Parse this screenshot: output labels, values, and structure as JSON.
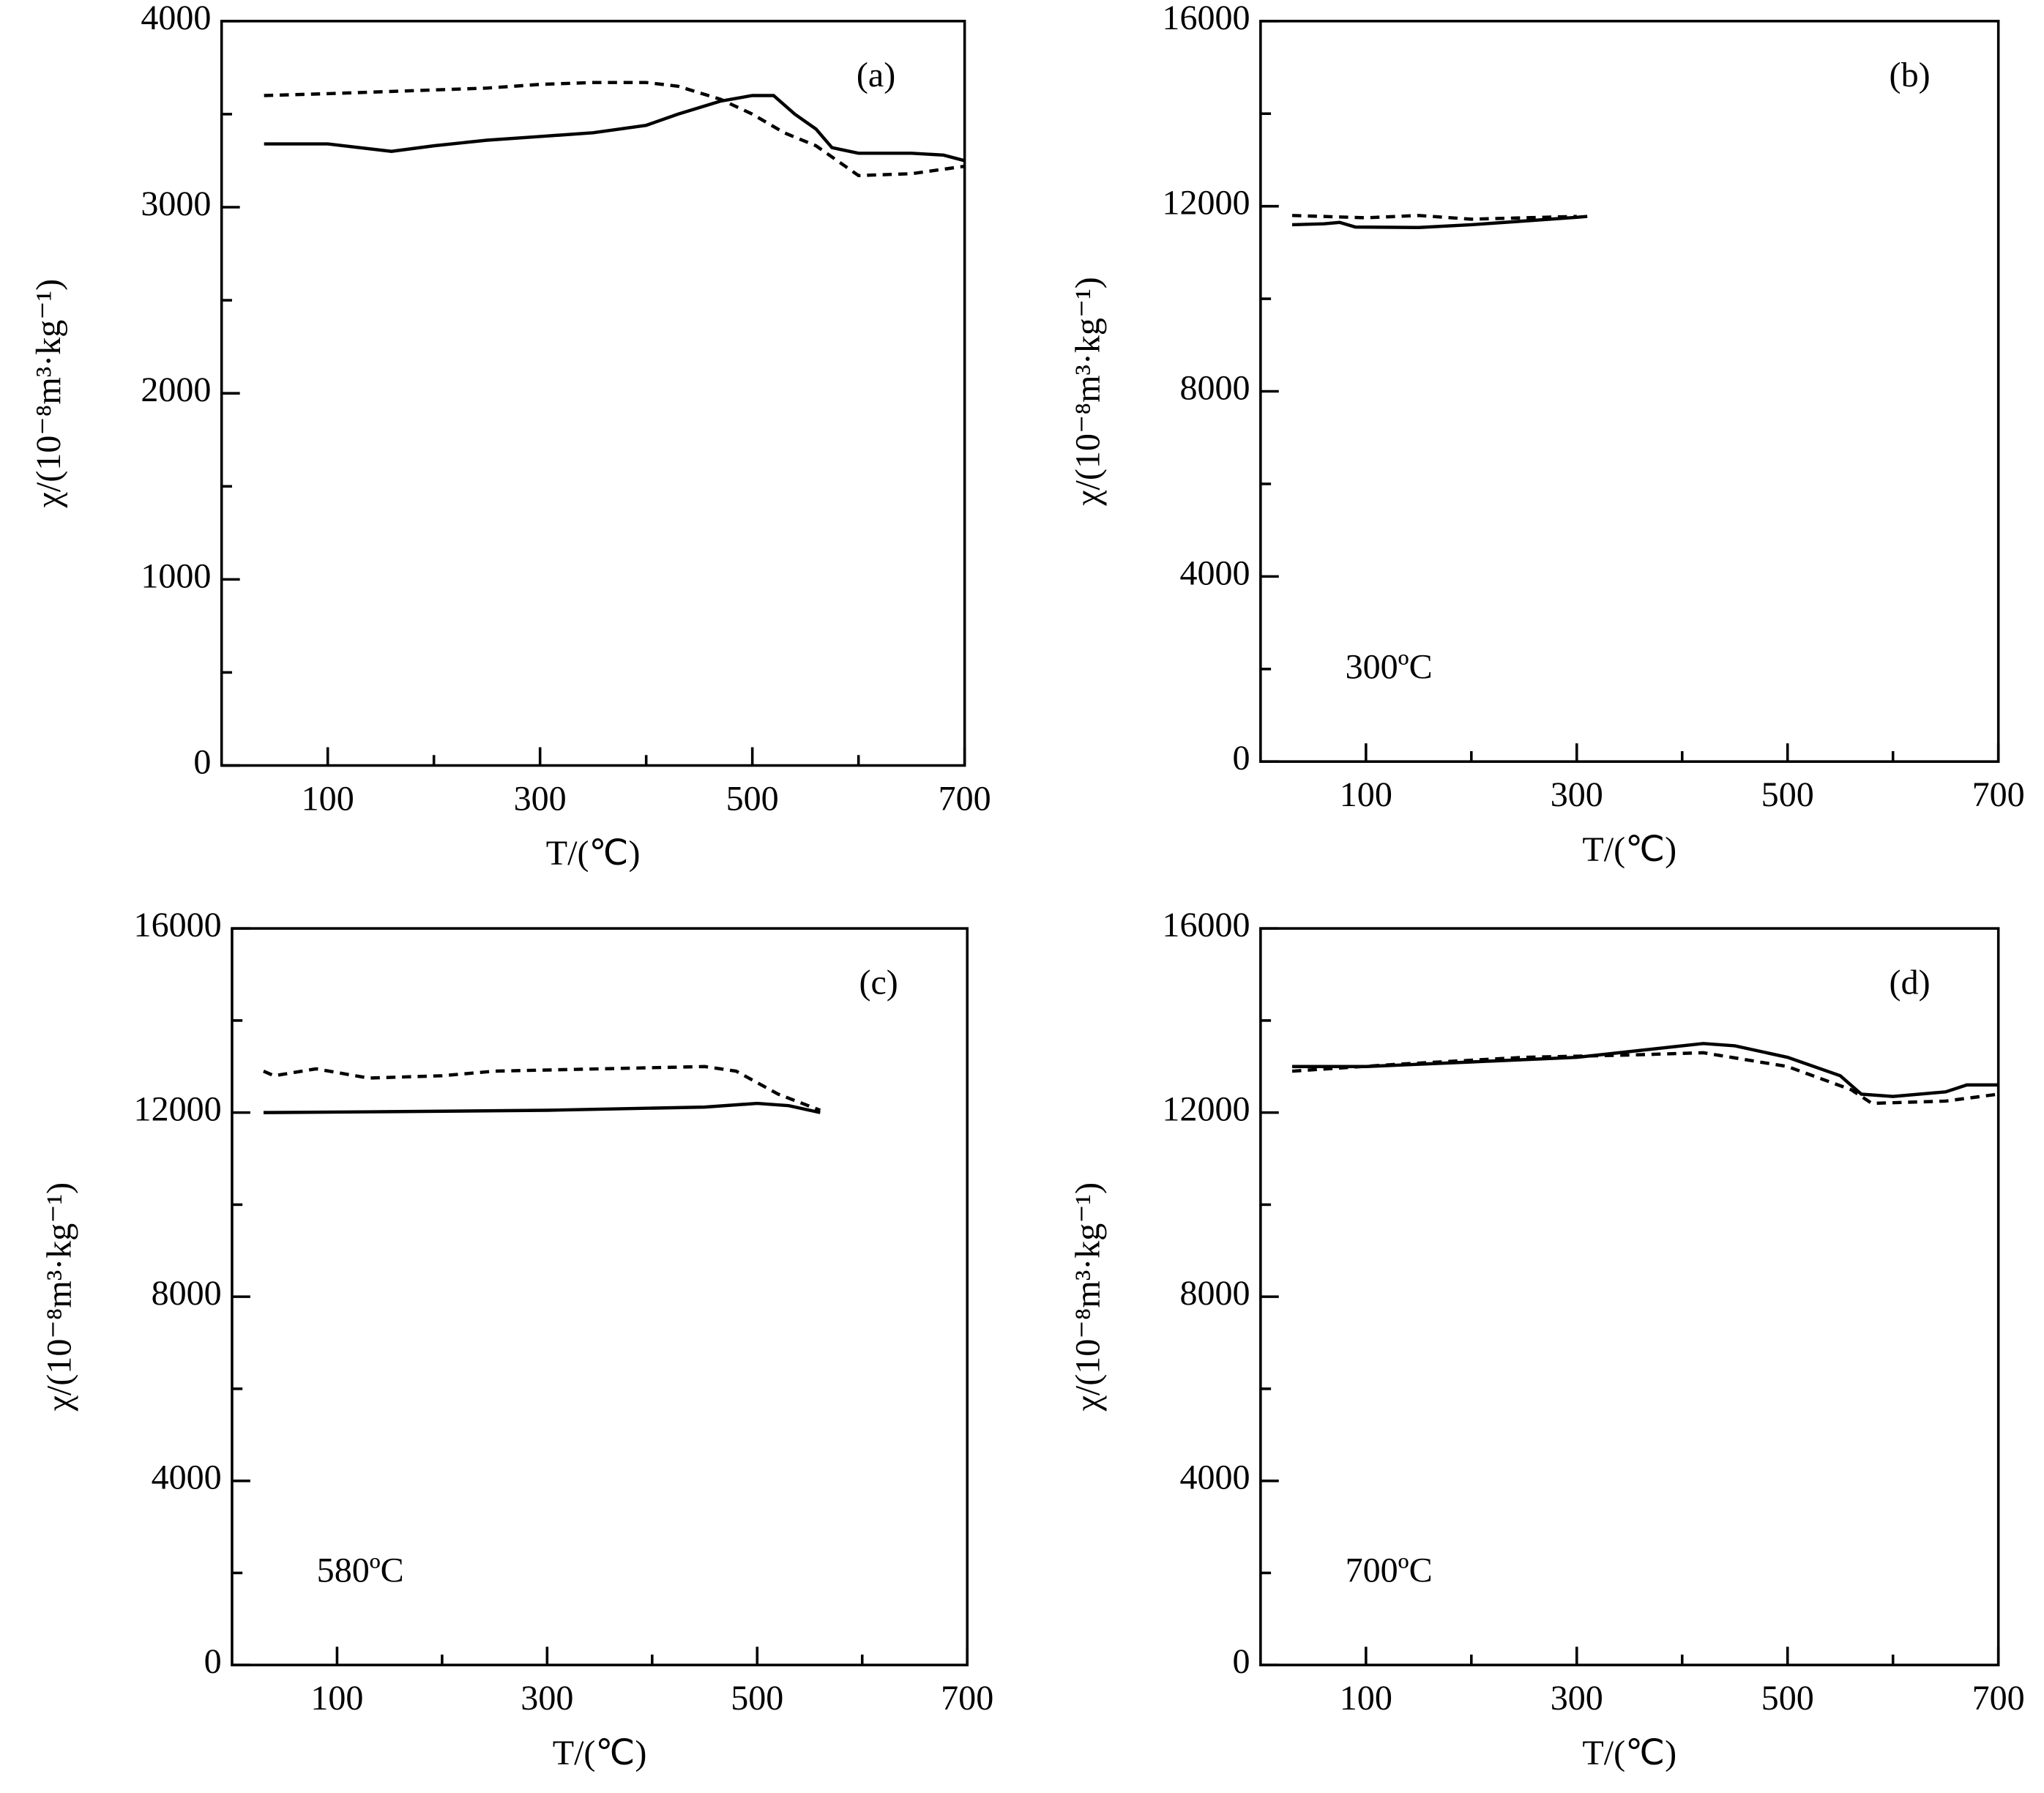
{
  "chart_data": [
    {
      "type": "line",
      "xlabel": "T/(℃)",
      "ylabel": "χ/(10⁻⁸m³·kg⁻¹)",
      "annotations": [
        "(a)"
      ],
      "xlim": [
        0,
        700
      ],
      "xticks": [
        100,
        300,
        500,
        700
      ],
      "xminor_ticks": [
        200,
        400,
        600
      ],
      "ylim": [
        0,
        4000
      ],
      "yticks": [
        0,
        1000,
        2000,
        3000,
        4000
      ],
      "yminor_ticks": [
        500,
        1500,
        2500,
        3500
      ],
      "series": [
        {
          "style": "solid",
          "color": "#000000",
          "x": [
            40,
            100,
            160,
            200,
            250,
            300,
            350,
            400,
            430,
            470,
            500,
            520,
            540,
            560,
            575,
            600,
            650,
            680,
            700
          ],
          "values": [
            3340,
            3340,
            3300,
            3330,
            3360,
            3380,
            3400,
            3440,
            3500,
            3570,
            3600,
            3600,
            3500,
            3420,
            3320,
            3290,
            3290,
            3280,
            3250
          ]
        },
        {
          "style": "dashed",
          "color": "#000000",
          "x": [
            40,
            100,
            150,
            200,
            250,
            300,
            350,
            400,
            430,
            470,
            500,
            530,
            560,
            580,
            600,
            650,
            700
          ],
          "values": [
            3600,
            3610,
            3620,
            3630,
            3640,
            3660,
            3670,
            3670,
            3650,
            3580,
            3500,
            3400,
            3330,
            3250,
            3170,
            3180,
            3220
          ]
        }
      ]
    },
    {
      "type": "line",
      "xlabel": "T/(℃)",
      "ylabel": "χ/(10⁻⁸m³·kg⁻¹)",
      "annotations": [
        "(b)",
        "300ºC"
      ],
      "xlim": [
        0,
        700
      ],
      "xticks": [
        100,
        300,
        500,
        700
      ],
      "xminor_ticks": [
        200,
        400,
        600
      ],
      "ylim": [
        0,
        16000
      ],
      "yticks": [
        0,
        4000,
        8000,
        12000,
        16000
      ],
      "yminor_ticks": [
        2000,
        6000,
        10000,
        14000
      ],
      "series": [
        {
          "style": "solid",
          "color": "#000000",
          "x": [
            30,
            60,
            75,
            90,
            150,
            200,
            250,
            300,
            310
          ],
          "values": [
            11600,
            11620,
            11650,
            11550,
            11540,
            11600,
            11680,
            11760,
            11780
          ]
        },
        {
          "style": "dashed",
          "color": "#000000",
          "x": [
            30,
            100,
            150,
            200,
            250,
            300
          ],
          "values": [
            11800,
            11750,
            11800,
            11720,
            11750,
            11780
          ]
        }
      ]
    },
    {
      "type": "line",
      "xlabel": "T/(℃)",
      "ylabel": "χ/(10⁻⁸m³·kg⁻¹)",
      "annotations": [
        "(c)",
        "580ºC"
      ],
      "xlim": [
        0,
        700
      ],
      "xticks": [
        100,
        300,
        500,
        700
      ],
      "xminor_ticks": [
        200,
        400,
        600
      ],
      "ylim": [
        0,
        16000
      ],
      "yticks": [
        0,
        4000,
        8000,
        12000,
        16000
      ],
      "yminor_ticks": [
        2000,
        6000,
        10000,
        14000
      ],
      "series": [
        {
          "style": "solid",
          "color": "#000000",
          "x": [
            30,
            150,
            300,
            450,
            500,
            530,
            560
          ],
          "values": [
            12000,
            12020,
            12050,
            12120,
            12200,
            12150,
            12000
          ]
        },
        {
          "style": "dashed",
          "color": "#000000",
          "x": [
            30,
            40,
            80,
            130,
            200,
            250,
            350,
            450,
            480,
            520,
            560
          ],
          "values": [
            12900,
            12800,
            12950,
            12750,
            12800,
            12900,
            12950,
            13000,
            12900,
            12400,
            12050
          ]
        }
      ]
    },
    {
      "type": "line",
      "xlabel": "T/(℃)",
      "ylabel": "χ/(10⁻⁸m³·kg⁻¹)",
      "annotations": [
        "(d)",
        "700ºC"
      ],
      "xlim": [
        0,
        700
      ],
      "xticks": [
        100,
        300,
        500,
        700
      ],
      "xminor_ticks": [
        200,
        400,
        600
      ],
      "ylim": [
        0,
        16000
      ],
      "yticks": [
        0,
        4000,
        8000,
        12000,
        16000
      ],
      "yminor_ticks": [
        2000,
        6000,
        10000,
        14000
      ],
      "series": [
        {
          "style": "solid",
          "color": "#000000",
          "x": [
            30,
            100,
            200,
            300,
            400,
            420,
            450,
            500,
            550,
            570,
            600,
            650,
            670,
            700
          ],
          "values": [
            13000,
            13000,
            13100,
            13200,
            13450,
            13500,
            13450,
            13200,
            12800,
            12400,
            12350,
            12450,
            12600,
            12600
          ]
        },
        {
          "style": "dashed",
          "color": "#000000",
          "x": [
            30,
            130,
            250,
            350,
            420,
            500,
            560,
            580,
            650,
            700
          ],
          "values": [
            12900,
            13050,
            13200,
            13250,
            13300,
            13000,
            12500,
            12200,
            12250,
            12400
          ]
        }
      ]
    }
  ]
}
